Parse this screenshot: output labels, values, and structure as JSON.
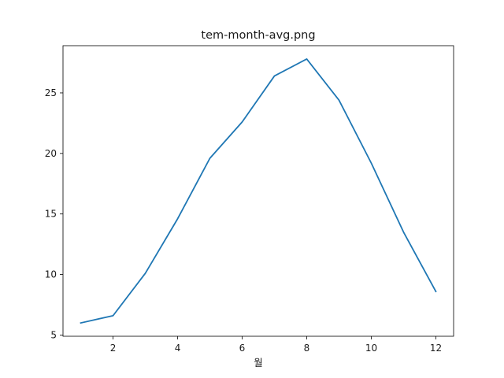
{
  "chart_data": {
    "type": "line",
    "title": "tem-month-avg.png",
    "xlabel": "월",
    "ylabel": "",
    "x": [
      1,
      2,
      3,
      4,
      5,
      6,
      7,
      8,
      9,
      10,
      11,
      12
    ],
    "series": [
      {
        "values": [
          6.0,
          6.6,
          10.1,
          14.6,
          19.6,
          22.6,
          26.4,
          27.8,
          24.4,
          19.2,
          13.5,
          8.6
        ],
        "color": "#1f77b4"
      }
    ],
    "xlim": [
      0.45,
      12.55
    ],
    "ylim": [
      4.9,
      28.9
    ],
    "xticks": [
      2,
      4,
      6,
      8,
      10,
      12
    ],
    "yticks": [
      5,
      10,
      15,
      20,
      25
    ],
    "grid": false,
    "legend": "none"
  }
}
